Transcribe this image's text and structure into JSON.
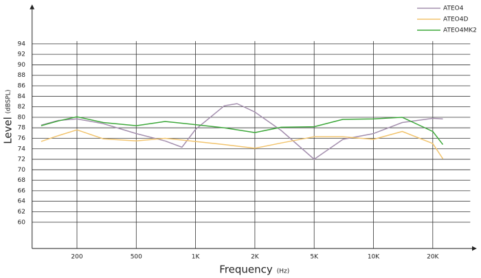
{
  "chart_data": {
    "type": "line",
    "y_label": "Level",
    "y_unit": "(dBSPL)",
    "x_label": "Frequency",
    "x_unit": "(Hz)",
    "xlim": [
      100,
      31000
    ],
    "ylim": [
      55,
      100
    ],
    "xticks": [
      200,
      500,
      {
        "value": 1000,
        "label": "1K"
      },
      {
        "value": 2000,
        "label": "2K"
      },
      {
        "value": 5000,
        "label": "5K"
      },
      {
        "value": 10000,
        "label": "10K"
      },
      {
        "value": 20000,
        "label": "20K"
      }
    ],
    "yticks": [
      60,
      62,
      64,
      66,
      68,
      70,
      72,
      74,
      76,
      78,
      80,
      82,
      84,
      86,
      88,
      90,
      92,
      94
    ],
    "grid": true,
    "legend": "top-right",
    "series": [
      {
        "name": "ATEO4",
        "color": "#a48fae",
        "x": [
          115,
          150,
          200,
          300,
          500,
          700,
          853,
          1000,
          1400,
          1625,
          2000,
          3000,
          5000,
          7000,
          10000,
          14000,
          20000,
          22500
        ],
        "values": [
          78.5,
          79.4,
          79.7,
          78.8,
          76.9,
          75.5,
          74.3,
          77.7,
          82.2,
          82.6,
          81.0,
          77.5,
          72.0,
          75.8,
          76.9,
          79.0,
          79.8,
          79.7
        ]
      },
      {
        "name": "ATEO4D",
        "color": "#f2c46d",
        "x": [
          115,
          150,
          200,
          300,
          500,
          700,
          1000,
          1400,
          2000,
          3000,
          5000,
          7000,
          10000,
          14000,
          20000,
          22500
        ],
        "values": [
          75.4,
          76.5,
          77.6,
          75.9,
          75.5,
          76.0,
          75.4,
          74.8,
          74.1,
          75.1,
          76.3,
          76.3,
          75.8,
          77.3,
          75.0,
          72.1
        ]
      },
      {
        "name": "ATEO4MK2",
        "color": "#3da83a",
        "x": [
          115,
          150,
          200,
          300,
          500,
          700,
          1000,
          1400,
          2000,
          3000,
          5000,
          7000,
          10000,
          14000,
          20000,
          22500
        ],
        "values": [
          78.4,
          79.3,
          80.1,
          79.0,
          78.4,
          79.2,
          78.6,
          78.0,
          77.1,
          78.1,
          78.2,
          79.6,
          79.7,
          80.0,
          77.3,
          74.8
        ]
      }
    ]
  }
}
